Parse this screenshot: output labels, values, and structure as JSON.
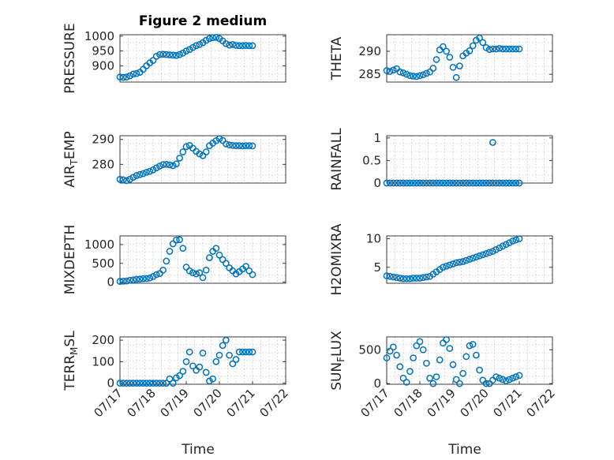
{
  "chart_data": [
    {
      "id": "pressure",
      "type": "scatter",
      "title": "Figure 2 medium",
      "ylabel": "PRESSURE",
      "xlabel": "",
      "ylim": [
        845,
        1005
      ],
      "yticks": [
        900,
        950,
        1000
      ],
      "xlim": [
        0,
        5
      ],
      "xticks": [],
      "grid": true,
      "marker": "o",
      "color": "#0072BD",
      "x": [
        0,
        0.1,
        0.2,
        0.3,
        0.4,
        0.5,
        0.6,
        0.7,
        0.8,
        0.9,
        1.0,
        1.1,
        1.2,
        1.3,
        1.4,
        1.5,
        1.6,
        1.7,
        1.8,
        1.9,
        2.0,
        2.1,
        2.2,
        2.3,
        2.4,
        2.5,
        2.6,
        2.7,
        2.8,
        2.9,
        3.0,
        3.1,
        3.2,
        3.3,
        3.4,
        3.5,
        3.6,
        3.7,
        3.8,
        3.9,
        4.0
      ],
      "y": [
        862,
        861,
        862,
        866,
        872,
        874,
        878,
        888,
        900,
        910,
        918,
        932,
        938,
        939,
        938,
        937,
        936,
        935,
        938,
        943,
        950,
        955,
        962,
        968,
        972,
        978,
        986,
        992,
        995,
        996,
        992,
        984,
        975,
        970,
        972,
        969,
        968,
        968,
        969,
        968,
        968
      ]
    },
    {
      "id": "theta",
      "type": "scatter",
      "ylabel": "THETA",
      "xlabel": "",
      "ylim": [
        283.3,
        293.6
      ],
      "yticks": [
        285,
        290
      ],
      "xlim": [
        0,
        5
      ],
      "xticks": [],
      "grid": true,
      "marker": "o",
      "color": "#0072BD",
      "x": [
        0,
        0.1,
        0.2,
        0.3,
        0.4,
        0.5,
        0.6,
        0.7,
        0.8,
        0.9,
        1.0,
        1.1,
        1.2,
        1.3,
        1.4,
        1.5,
        1.6,
        1.7,
        1.8,
        1.9,
        2.0,
        2.1,
        2.2,
        2.3,
        2.4,
        2.5,
        2.6,
        2.7,
        2.8,
        2.9,
        3.0,
        3.1,
        3.2,
        3.3,
        3.4,
        3.5,
        3.6,
        3.7,
        3.8,
        3.9,
        4.0
      ],
      "y": [
        285.8,
        285.6,
        285.9,
        286.2,
        285.5,
        285.3,
        285.0,
        284.7,
        284.6,
        284.5,
        284.7,
        284.9,
        285.2,
        285.5,
        286.3,
        288.2,
        290.3,
        291.0,
        290.0,
        288.7,
        286.5,
        284.3,
        286.8,
        289.0,
        289.6,
        290.1,
        291.2,
        292.4,
        292.9,
        291.9,
        290.8,
        290.4,
        290.5,
        290.5,
        290.6,
        290.5,
        290.5,
        290.5,
        290.5,
        290.5,
        290.5
      ]
    },
    {
      "id": "air_temp",
      "type": "scatter",
      "ylabel_parts": [
        "AIR",
        "T",
        "EMP"
      ],
      "xlabel": "",
      "ylim": [
        272.5,
        291.5
      ],
      "yticks": [
        280,
        290
      ],
      "xlim": [
        0,
        5
      ],
      "xticks": [],
      "grid": true,
      "marker": "o",
      "color": "#0072BD",
      "x": [
        0,
        0.1,
        0.2,
        0.3,
        0.4,
        0.5,
        0.6,
        0.7,
        0.8,
        0.9,
        1.0,
        1.1,
        1.2,
        1.3,
        1.4,
        1.5,
        1.6,
        1.7,
        1.8,
        1.9,
        2.0,
        2.1,
        2.2,
        2.3,
        2.4,
        2.5,
        2.6,
        2.7,
        2.8,
        2.9,
        3.0,
        3.1,
        3.2,
        3.3,
        3.4,
        3.5,
        3.6,
        3.7,
        3.8,
        3.9,
        4.0
      ],
      "y": [
        274,
        273.8,
        273.5,
        274.0,
        274.8,
        275.5,
        275.9,
        276.3,
        276.8,
        277.2,
        277.8,
        278.6,
        279.3,
        279.9,
        280.0,
        279.8,
        279.5,
        280.2,
        282.5,
        285.0,
        287.1,
        287.6,
        286.5,
        285.2,
        284.2,
        283.5,
        285.0,
        287.5,
        288.5,
        289.5,
        290.3,
        289.6,
        288.2,
        287.8,
        287.6,
        287.5,
        287.5,
        287.4,
        287.5,
        287.5,
        287.4
      ]
    },
    {
      "id": "rainfall",
      "type": "scatter",
      "ylabel": "RAINFALL",
      "xlabel": "",
      "ylim": [
        0,
        1.05
      ],
      "yticks": [
        0,
        0.5,
        1
      ],
      "ytick_labels": [
        "0",
        "0.5",
        "1"
      ],
      "xlim": [
        0,
        5
      ],
      "xticks": [],
      "grid": true,
      "marker": "o",
      "color": "#0072BD",
      "x": [
        0,
        0.1,
        0.2,
        0.3,
        0.4,
        0.5,
        0.6,
        0.7,
        0.8,
        0.9,
        1.0,
        1.1,
        1.2,
        1.3,
        1.4,
        1.5,
        1.6,
        1.7,
        1.8,
        1.9,
        2.0,
        2.1,
        2.2,
        2.3,
        2.4,
        2.5,
        2.6,
        2.7,
        2.8,
        2.9,
        3.0,
        3.1,
        3.2,
        3.3,
        3.4,
        3.5,
        3.6,
        3.7,
        3.8,
        3.9,
        4.0,
        3.2
      ],
      "y": [
        0,
        0,
        0,
        0,
        0,
        0,
        0,
        0,
        0,
        0,
        0,
        0,
        0,
        0,
        0,
        0,
        0,
        0,
        0,
        0,
        0,
        0,
        0,
        0,
        0,
        0,
        0,
        0,
        0,
        0,
        0,
        0,
        0,
        0,
        0,
        0,
        0,
        0,
        0,
        0,
        0,
        0.9
      ]
    },
    {
      "id": "mixdepth",
      "type": "scatter",
      "ylabel": "MIXDEPTH",
      "xlabel": "",
      "ylim": [
        -30,
        1230
      ],
      "yticks": [
        0,
        500,
        1000
      ],
      "xlim": [
        0,
        5
      ],
      "xticks": [],
      "grid": true,
      "marker": "o",
      "color": "#0072BD",
      "x": [
        0,
        0.1,
        0.2,
        0.3,
        0.4,
        0.5,
        0.6,
        0.7,
        0.8,
        0.9,
        1.0,
        1.1,
        1.2,
        1.3,
        1.4,
        1.5,
        1.6,
        1.7,
        1.8,
        1.9,
        2.0,
        2.1,
        2.2,
        2.3,
        2.4,
        2.5,
        2.6,
        2.7,
        2.8,
        2.9,
        3.0,
        3.1,
        3.2,
        3.3,
        3.4,
        3.5,
        3.6,
        3.7,
        3.8,
        3.9,
        4.0
      ],
      "y": [
        20,
        25,
        30,
        50,
        60,
        75,
        80,
        90,
        95,
        110,
        150,
        200,
        230,
        320,
        560,
        820,
        1020,
        1120,
        1130,
        900,
        400,
        300,
        250,
        220,
        250,
        120,
        320,
        650,
        820,
        900,
        720,
        600,
        500,
        380,
        300,
        220,
        280,
        350,
        420,
        300,
        200
      ]
    },
    {
      "id": "h2omixra",
      "type": "scatter",
      "ylabel": "H2OMIXRA",
      "xlabel": "",
      "ylim": [
        2.2,
        10.5
      ],
      "yticks": [
        5,
        10
      ],
      "xlim": [
        0,
        5
      ],
      "xticks": [],
      "grid": true,
      "marker": "o",
      "color": "#0072BD",
      "x": [
        0,
        0.1,
        0.2,
        0.3,
        0.4,
        0.5,
        0.6,
        0.7,
        0.8,
        0.9,
        1.0,
        1.1,
        1.2,
        1.3,
        1.4,
        1.5,
        1.6,
        1.7,
        1.8,
        1.9,
        2.0,
        2.1,
        2.2,
        2.3,
        2.4,
        2.5,
        2.6,
        2.7,
        2.8,
        2.9,
        3.0,
        3.1,
        3.2,
        3.3,
        3.4,
        3.5,
        3.6,
        3.7,
        3.8,
        3.9,
        4.0
      ],
      "y": [
        3.5,
        3.4,
        3.3,
        3.2,
        3.1,
        3.0,
        3.0,
        3.0,
        3.1,
        3.1,
        3.1,
        3.2,
        3.3,
        3.4,
        3.8,
        4.2,
        4.6,
        5.0,
        5.2,
        5.4,
        5.6,
        5.8,
        5.9,
        6.0,
        6.2,
        6.4,
        6.6,
        6.8,
        7.0,
        7.2,
        7.4,
        7.6,
        7.8,
        8.1,
        8.4,
        8.7,
        9.0,
        9.3,
        9.6,
        9.8,
        10.0
      ]
    },
    {
      "id": "terr_msl",
      "type": "scatter",
      "ylabel_parts": [
        "TERR",
        "M",
        "SL"
      ],
      "xlabel": "Time",
      "ylim": [
        -5,
        215
      ],
      "yticks": [
        0,
        100,
        200
      ],
      "xlim": [
        0,
        5
      ],
      "xticks": [
        0,
        1,
        2,
        3,
        4,
        5
      ],
      "xtick_labels": [
        "07/17",
        "07/18",
        "07/19",
        "07/20",
        "07/21",
        "07/22"
      ],
      "grid": true,
      "marker": "o",
      "color": "#0072BD",
      "x": [
        0,
        0.1,
        0.2,
        0.3,
        0.4,
        0.5,
        0.6,
        0.7,
        0.8,
        0.9,
        1.0,
        1.1,
        1.2,
        1.3,
        1.4,
        1.5,
        1.6,
        1.7,
        1.8,
        1.9,
        2.0,
        2.1,
        2.2,
        2.3,
        2.4,
        2.5,
        2.6,
        2.7,
        2.8,
        2.9,
        3.0,
        3.1,
        3.2,
        3.3,
        3.4,
        3.5,
        3.6,
        3.7,
        3.8,
        3.9,
        4.0
      ],
      "y": [
        0,
        0,
        0,
        0,
        0,
        0,
        0,
        0,
        0,
        0,
        0,
        0,
        0,
        0,
        0,
        20,
        0,
        25,
        35,
        55,
        100,
        145,
        80,
        60,
        75,
        140,
        50,
        10,
        20,
        100,
        130,
        175,
        200,
        130,
        90,
        110,
        145,
        145,
        145,
        145,
        145
      ]
    },
    {
      "id": "sun_flux",
      "type": "scatter",
      "ylabel_parts": [
        "SUN",
        "F",
        "LUX"
      ],
      "xlabel": "Time",
      "ylim": [
        -10,
        690
      ],
      "yticks": [
        0,
        500
      ],
      "xlim": [
        0,
        5
      ],
      "xticks": [
        0,
        1,
        2,
        3,
        4,
        5
      ],
      "xtick_labels": [
        "07/17",
        "07/18",
        "07/19",
        "07/20",
        "07/21",
        "07/22"
      ],
      "grid": true,
      "marker": "o",
      "color": "#0072BD",
      "x": [
        0,
        0.1,
        0.2,
        0.3,
        0.4,
        0.5,
        0.6,
        0.7,
        0.8,
        0.9,
        1.0,
        1.1,
        1.2,
        1.3,
        1.4,
        1.5,
        1.6,
        1.7,
        1.8,
        1.9,
        2.0,
        2.1,
        2.2,
        2.3,
        2.4,
        2.5,
        2.6,
        2.7,
        2.8,
        2.9,
        3.0,
        3.1,
        3.2,
        3.3,
        3.4,
        3.5,
        3.6,
        3.7,
        3.8,
        3.9,
        4.0
      ],
      "y": [
        380,
        480,
        540,
        420,
        250,
        80,
        20,
        180,
        380,
        560,
        620,
        500,
        300,
        80,
        0,
        100,
        350,
        600,
        650,
        520,
        280,
        60,
        0,
        150,
        400,
        560,
        580,
        420,
        200,
        50,
        0,
        0,
        50,
        100,
        80,
        60,
        40,
        60,
        80,
        100,
        120
      ]
    }
  ]
}
